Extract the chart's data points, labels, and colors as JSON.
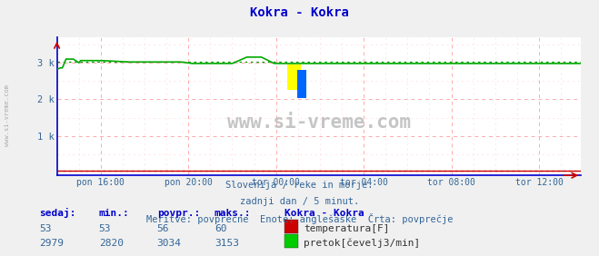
{
  "title": "Kokra - Kokra",
  "title_color": "#0000cc",
  "bg_color": "#f0f0f0",
  "plot_bg_color": "#ffffff",
  "grid_color_major": "#ffaaaa",
  "grid_color_minor": "#ffdddd",
  "xlabel_ticks": [
    "pon 16:00",
    "pon 20:00",
    "tor 00:00",
    "tor 04:00",
    "tor 08:00",
    "tor 12:00"
  ],
  "ytick_labels": [
    "",
    "1 k",
    "2 k",
    "3 k"
  ],
  "ymax": 3700,
  "ymin": -80,
  "watermark": "www.si-vreme.com",
  "subtitle_lines": [
    "Slovenija / reke in morje.",
    "zadnji dan / 5 minut.",
    "Meritve: povprečne  Enote: anglešaške  Črta: povprečje"
  ],
  "table_headers": [
    "sedaj:",
    "min.:",
    "povpr.:",
    "maks.:"
  ],
  "table_data": [
    [
      "53",
      "53",
      "56",
      "60"
    ],
    [
      "2979",
      "2820",
      "3034",
      "3153"
    ]
  ],
  "legend_label": "Kokra - Kokra",
  "legend_items": [
    {
      "color": "#cc0000",
      "label": "temperatura[F]"
    },
    {
      "color": "#00cc00",
      "label": "pretok[čevelj3/min]"
    }
  ],
  "temp_color": "#cc0000",
  "flow_color": "#00aa00",
  "flow_avg": 3034,
  "temp_avg": 56,
  "sidebar_text": "www.si-vreme.com",
  "spine_color": "#0000cc",
  "tick_color": "#336699",
  "n_points": 288,
  "tick_positions": [
    24,
    72,
    120,
    168,
    216,
    264
  ],
  "flow_init": 2820,
  "flow_plateau": 3000,
  "flow_spike": 3153,
  "flow_final": 2979,
  "temp_flat": 53
}
